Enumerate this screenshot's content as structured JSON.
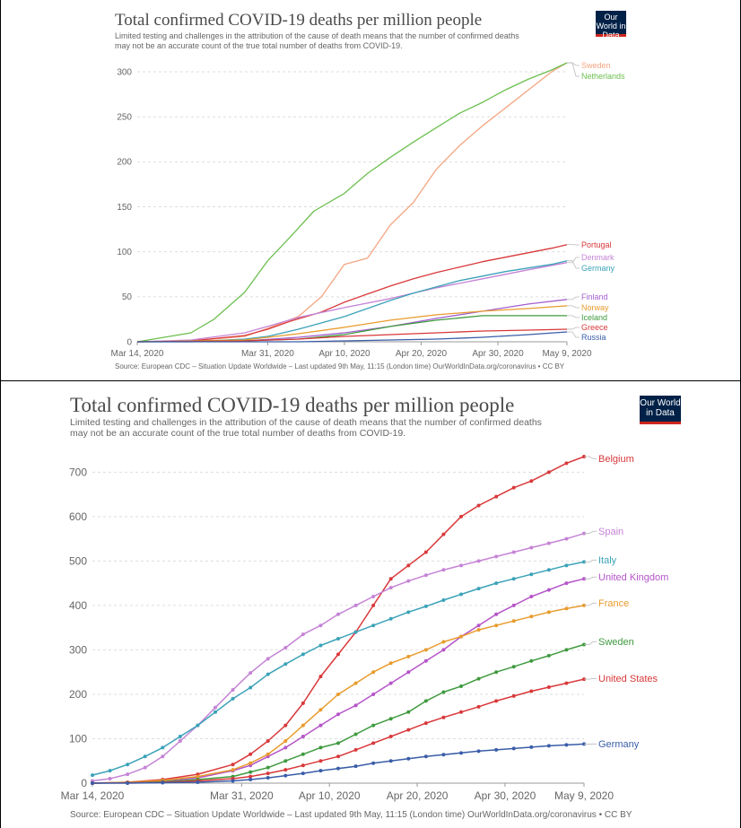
{
  "charts": [
    {
      "title": "Total confirmed COVID-19 deaths per million people",
      "subtitle": "Limited testing and challenges in the attribution of the cause of death means that the number of confirmed deaths\nmay not be an accurate count of the true total number of deaths from COVID-19.",
      "logo": "Our World in Data",
      "source": "Source: European CDC – Situation Update Worldwide – Last updated 9th May, 11:15 (London time)   OurWorldInData.org/coronavirus • CC BY"
    },
    {
      "title": "Total confirmed COVID-19 deaths per million people",
      "subtitle": "Limited testing and challenges in the attribution of the cause of death means that the number of confirmed deaths\nmay not be an accurate count of the true total number of deaths from COVID-19.",
      "logo": "Our World in Data",
      "source": "Source: European CDC – Situation Update Worldwide – Last updated 9th May, 11:15 (London time)   OurWorldInData.org/coronavirus • CC BY"
    }
  ],
  "chart_data": [
    {
      "type": "line",
      "markers": false,
      "title": "Total confirmed COVID-19 deaths per million people",
      "xlabel": "",
      "ylabel": "",
      "x_ticks": [
        "Mar 14, 2020",
        "Mar 31, 2020",
        "Apr 10, 2020",
        "Apr 20, 2020",
        "Apr 30, 2020",
        "May 9, 2020"
      ],
      "x_tick_days": [
        0,
        17,
        27,
        37,
        47,
        56
      ],
      "xlim": [
        0,
        56
      ],
      "ylim": [
        0,
        310
      ],
      "y_ticks": [
        0,
        50,
        100,
        150,
        200,
        250,
        300
      ],
      "grid": "horizontal-dashed",
      "legend": "right-end-labels",
      "series": [
        {
          "name": "Sweden",
          "color": "#f4a582",
          "x": [
            0,
            7,
            14,
            17,
            21,
            24,
            27,
            30,
            33,
            36,
            39,
            42,
            45,
            48,
            51,
            54,
            56
          ],
          "y": [
            0,
            1,
            6,
            15,
            28,
            50,
            86,
            93,
            130,
            155,
            192,
            218,
            240,
            260,
            280,
            300,
            310
          ]
        },
        {
          "name": "Netherlands",
          "color": "#6cbf4f",
          "x": [
            0,
            7,
            10,
            14,
            17,
            20,
            23,
            27,
            30,
            33,
            36,
            39,
            42,
            45,
            48,
            51,
            54,
            56
          ],
          "y": [
            0,
            10,
            25,
            55,
            90,
            117,
            145,
            165,
            187,
            205,
            222,
            238,
            254,
            266,
            280,
            292,
            302,
            310
          ]
        },
        {
          "name": "Portugal",
          "color": "#d9383a",
          "x": [
            0,
            7,
            14,
            17,
            20,
            24,
            27,
            30,
            33,
            36,
            39,
            42,
            45,
            48,
            51,
            54,
            56
          ],
          "y": [
            0,
            1,
            7,
            14,
            23,
            33,
            44,
            53,
            62,
            70,
            77,
            83,
            89,
            94,
            99,
            104,
            108
          ]
        },
        {
          "name": "Denmark",
          "color": "#c583d6",
          "x": [
            0,
            7,
            14,
            17,
            21,
            27,
            33,
            39,
            45,
            51,
            56
          ],
          "y": [
            0,
            2,
            10,
            17,
            27,
            38,
            48,
            60,
            70,
            80,
            88
          ]
        },
        {
          "name": "Germany",
          "color": "#3ba2b8",
          "x": [
            0,
            7,
            14,
            17,
            21,
            27,
            30,
            33,
            36,
            39,
            42,
            45,
            48,
            51,
            54,
            56
          ],
          "y": [
            0,
            0,
            3,
            6,
            14,
            28,
            37,
            46,
            54,
            61,
            68,
            73,
            78,
            82,
            86,
            90
          ]
        },
        {
          "name": "Finland",
          "color": "#a45fcf",
          "x": [
            0,
            14,
            21,
            27,
            33,
            39,
            45,
            51,
            56
          ],
          "y": [
            0,
            1,
            5,
            10,
            17,
            26,
            34,
            42,
            47
          ]
        },
        {
          "name": "Norway",
          "color": "#e89b2c",
          "x": [
            0,
            14,
            17,
            21,
            27,
            33,
            39,
            45,
            51,
            56
          ],
          "y": [
            0,
            2,
            5,
            9,
            16,
            24,
            30,
            34,
            37,
            40
          ]
        },
        {
          "name": "Iceland",
          "color": "#3f9a3f",
          "x": [
            0,
            14,
            21,
            27,
            33,
            39,
            45,
            51,
            56
          ],
          "y": [
            0,
            1,
            3,
            8,
            17,
            24,
            29,
            29,
            29
          ]
        },
        {
          "name": "Greece",
          "color": "#d9383a",
          "x": [
            0,
            14,
            21,
            27,
            33,
            39,
            45,
            51,
            56
          ],
          "y": [
            0,
            1,
            3,
            6,
            8,
            10,
            12,
            13,
            14
          ]
        },
        {
          "name": "Russia",
          "color": "#3a5da8",
          "x": [
            0,
            21,
            27,
            33,
            39,
            45,
            51,
            56
          ],
          "y": [
            0,
            0,
            1,
            2,
            3,
            5,
            8,
            11
          ]
        }
      ]
    },
    {
      "type": "line",
      "markers": true,
      "title": "Total confirmed COVID-19 deaths per million people",
      "xlabel": "",
      "ylabel": "",
      "x_ticks": [
        "Mar 14, 2020",
        "Mar 31, 2020",
        "Apr 10, 2020",
        "Apr 20, 2020",
        "Apr 30, 2020",
        "May 9, 2020"
      ],
      "x_tick_days": [
        0,
        17,
        27,
        37,
        47,
        56
      ],
      "xlim": [
        0,
        56
      ],
      "ylim": [
        0,
        735
      ],
      "y_ticks": [
        0,
        100,
        200,
        300,
        400,
        500,
        600,
        700
      ],
      "grid": "horizontal-dashed",
      "legend": "right-end-labels",
      "series": [
        {
          "name": "Belgium",
          "color": "#d9383a",
          "x": [
            0,
            4,
            8,
            12,
            16,
            18,
            20,
            22,
            24,
            26,
            28,
            30,
            32,
            34,
            36,
            38,
            40,
            42,
            44,
            46,
            48,
            50,
            52,
            54,
            56
          ],
          "y": [
            0,
            2,
            8,
            20,
            42,
            65,
            95,
            130,
            180,
            240,
            290,
            340,
            400,
            460,
            490,
            520,
            560,
            600,
            625,
            645,
            665,
            680,
            700,
            720,
            735
          ]
        },
        {
          "name": "Spain",
          "color": "#c583d6",
          "x": [
            0,
            2,
            4,
            6,
            8,
            10,
            12,
            14,
            16,
            18,
            20,
            22,
            24,
            26,
            28,
            30,
            32,
            34,
            36,
            38,
            40,
            42,
            44,
            46,
            48,
            50,
            52,
            54,
            56
          ],
          "y": [
            5,
            10,
            20,
            35,
            60,
            95,
            130,
            170,
            210,
            248,
            280,
            305,
            335,
            355,
            380,
            400,
            420,
            440,
            455,
            468,
            480,
            490,
            500,
            510,
            520,
            530,
            540,
            550,
            562
          ]
        },
        {
          "name": "Italy",
          "color": "#3ba2b8",
          "x": [
            0,
            2,
            4,
            6,
            8,
            10,
            12,
            14,
            16,
            18,
            20,
            22,
            24,
            26,
            28,
            30,
            32,
            34,
            36,
            38,
            40,
            42,
            44,
            46,
            48,
            50,
            52,
            54,
            56
          ],
          "y": [
            18,
            28,
            42,
            60,
            80,
            105,
            130,
            160,
            190,
            215,
            245,
            268,
            290,
            310,
            325,
            340,
            355,
            370,
            385,
            398,
            412,
            425,
            438,
            450,
            460,
            470,
            480,
            490,
            498
          ]
        },
        {
          "name": "United Kingdom",
          "color": "#b554c8",
          "x": [
            0,
            4,
            8,
            12,
            16,
            18,
            20,
            22,
            24,
            26,
            28,
            30,
            32,
            34,
            36,
            38,
            40,
            42,
            44,
            46,
            48,
            50,
            52,
            54,
            56
          ],
          "y": [
            0,
            1,
            5,
            12,
            28,
            40,
            60,
            80,
            105,
            130,
            155,
            175,
            200,
            225,
            250,
            275,
            300,
            330,
            355,
            380,
            400,
            420,
            435,
            450,
            460
          ]
        },
        {
          "name": "France",
          "color": "#e89b2c",
          "x": [
            0,
            4,
            8,
            12,
            16,
            18,
            20,
            22,
            24,
            26,
            28,
            30,
            32,
            34,
            36,
            38,
            40,
            42,
            44,
            46,
            48,
            50,
            52,
            54,
            56
          ],
          "y": [
            0,
            2,
            6,
            15,
            30,
            45,
            65,
            95,
            130,
            165,
            200,
            225,
            250,
            270,
            285,
            300,
            318,
            330,
            345,
            355,
            365,
            375,
            385,
            393,
            400
          ]
        },
        {
          "name": "Sweden",
          "color": "#3f9a3f",
          "x": [
            0,
            4,
            8,
            12,
            16,
            18,
            20,
            22,
            24,
            26,
            28,
            30,
            32,
            34,
            36,
            38,
            40,
            42,
            44,
            46,
            48,
            50,
            52,
            54,
            56
          ],
          "y": [
            0,
            1,
            3,
            8,
            15,
            25,
            35,
            50,
            65,
            80,
            90,
            110,
            130,
            145,
            160,
            185,
            205,
            218,
            235,
            250,
            262,
            275,
            287,
            300,
            312
          ]
        },
        {
          "name": "United States",
          "color": "#d9383a",
          "x": [
            0,
            4,
            8,
            12,
            16,
            18,
            20,
            22,
            24,
            26,
            28,
            30,
            32,
            34,
            36,
            38,
            40,
            42,
            44,
            46,
            48,
            50,
            52,
            54,
            56
          ],
          "y": [
            0,
            1,
            2,
            5,
            10,
            15,
            22,
            30,
            40,
            50,
            60,
            75,
            90,
            105,
            120,
            135,
            148,
            160,
            172,
            185,
            196,
            207,
            216,
            225,
            234
          ]
        },
        {
          "name": "Germany",
          "color": "#3a5da8",
          "x": [
            0,
            4,
            8,
            12,
            16,
            18,
            20,
            22,
            24,
            26,
            28,
            30,
            32,
            34,
            36,
            38,
            40,
            42,
            44,
            46,
            48,
            50,
            52,
            54,
            56
          ],
          "y": [
            0,
            0,
            1,
            2,
            5,
            8,
            12,
            17,
            22,
            28,
            33,
            38,
            45,
            50,
            55,
            60,
            64,
            68,
            72,
            75,
            78,
            81,
            84,
            86,
            88
          ]
        }
      ]
    }
  ]
}
